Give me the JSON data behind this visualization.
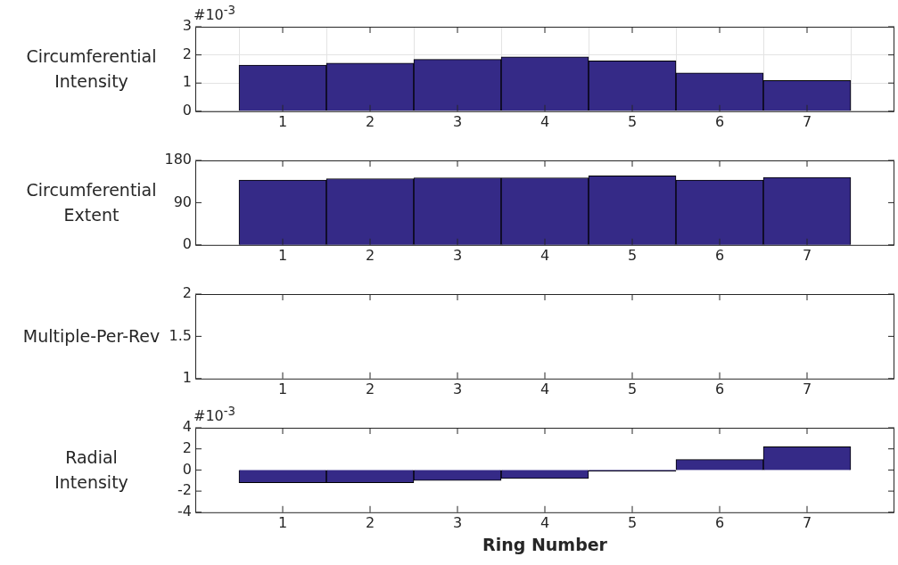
{
  "chart_data": [
    {
      "type": "bar",
      "ylabel": "Circumferential\nIntensity",
      "categories": [
        "1",
        "2",
        "3",
        "4",
        "5",
        "6",
        "7"
      ],
      "values": [
        1.64,
        1.71,
        1.84,
        1.93,
        1.79,
        1.36,
        1.09
      ],
      "color": "#352a87",
      "ylim": [
        0,
        3
      ],
      "yticks": [
        0,
        1,
        2,
        3
      ],
      "grid": true,
      "annotations": [
        "#10$^{-3}$"
      ]
    },
    {
      "type": "bar",
      "ylabel": "Circumferential\nExtent",
      "categories": [
        "1",
        "2",
        "3",
        "4",
        "5",
        "6",
        "7"
      ],
      "values": [
        138,
        141,
        143,
        143,
        147,
        138,
        144
      ],
      "color": "#352a87",
      "ylim": [
        0,
        180
      ],
      "yticks": [
        0,
        90,
        180
      ]
    },
    {
      "type": "bar",
      "ylabel": "Multiple-Per-Rev",
      "categories": [
        "1",
        "2",
        "3",
        "4",
        "5",
        "6",
        "7"
      ],
      "values": [
        null,
        null,
        null,
        null,
        null,
        null,
        null
      ],
      "color": "#352a87",
      "ylim": [
        1,
        2
      ],
      "yticks": [
        1,
        1.5,
        2
      ]
    },
    {
      "type": "bar",
      "ylabel": "Radial\nIntensity",
      "xlabel": "Ring Number",
      "categories": [
        "1",
        "2",
        "3",
        "4",
        "5",
        "6",
        "7"
      ],
      "values": [
        -1.2,
        -1.2,
        -1.0,
        -0.8,
        -0.1,
        1.0,
        2.2
      ],
      "color": "#352a87",
      "ylim": [
        -4,
        4
      ],
      "yticks": [
        -4,
        -2,
        0,
        2,
        4
      ],
      "annotations": [
        "#10$^{-3}$"
      ]
    }
  ]
}
